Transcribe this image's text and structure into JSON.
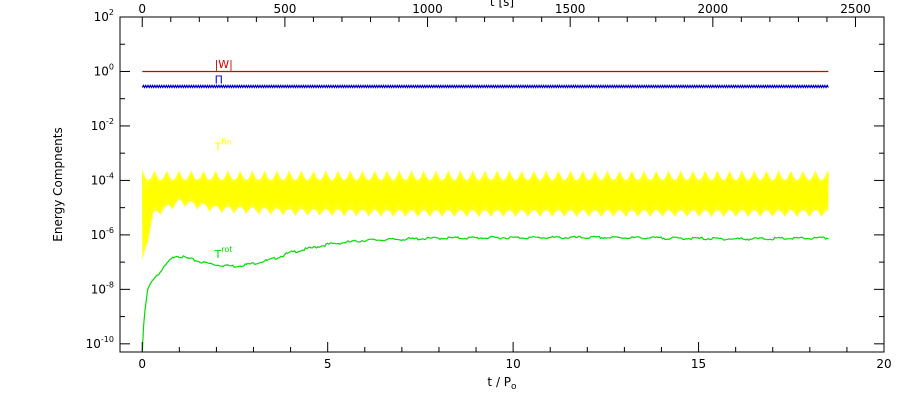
{
  "chart_data": {
    "type": "line",
    "title": "",
    "xlabel": "t / P",
    "xlabel_sub": "o",
    "x2label": "t [s]",
    "ylabel": "Energy Compnents",
    "xlim": [
      -0.6,
      20
    ],
    "x2lim": [
      -78,
      2600
    ],
    "ylim_log10": [
      -10.3,
      2
    ],
    "yscale": "log",
    "grid": false,
    "legend": "none",
    "x_ticks": [
      "0",
      "5",
      "10",
      "15",
      "20"
    ],
    "x_tick_values": [
      0,
      5,
      10,
      15,
      20
    ],
    "x2_ticks": [
      "0",
      "500",
      "1000",
      "1500",
      "2000",
      "2500"
    ],
    "x2_tick_values": [
      0,
      500,
      1000,
      1500,
      2000,
      2500
    ],
    "y_tick_base": "10",
    "y_tick_exps": [
      "2",
      "0",
      "-2",
      "-4",
      "-6",
      "-8",
      "-10"
    ],
    "y_tick_values_log10": [
      2,
      0,
      -2,
      -4,
      -6,
      -8,
      -10
    ],
    "series": [
      {
        "name": "|W|",
        "color": "#d40000",
        "x": [
          0,
          18.5
        ],
        "y_log10": [
          0.0,
          0.0
        ]
      },
      {
        "name": "Π",
        "color": "#0000cc",
        "x": [
          0,
          18.5
        ],
        "y_log10": [
          -0.55,
          -0.55
        ],
        "ripple_log10": 0.04
      },
      {
        "name": "T",
        "name_sup": "flo",
        "color": "#ffff00",
        "x": [
          0,
          18.5
        ],
        "upper_log10": -3.63,
        "lower_envelope": {
          "x": [
            0,
            0.3,
            1.0,
            2.0,
            4.0,
            7.0,
            10.0,
            15.0,
            18.5
          ],
          "y_log10": [
            -7.2,
            -5.4,
            -4.95,
            -5.2,
            -5.3,
            -5.35,
            -5.35,
            -5.35,
            -5.35
          ]
        },
        "oscillation_period": 0.33
      },
      {
        "name": "T",
        "name_sup": "rot",
        "color": "#00dd00",
        "x": [
          0,
          0.05,
          0.15,
          0.3,
          0.5,
          0.7,
          0.9,
          1.2,
          1.6,
          2.0,
          2.5,
          3.0,
          3.5,
          4.0,
          5.0,
          6.0,
          8.0,
          10.0,
          13.0,
          16.0,
          18.5
        ],
        "y_log10": [
          -10.3,
          -9.0,
          -8.0,
          -7.6,
          -7.35,
          -7.0,
          -6.75,
          -6.85,
          -7.0,
          -7.1,
          -7.15,
          -7.05,
          -6.9,
          -6.65,
          -6.35,
          -6.2,
          -6.12,
          -6.1,
          -6.1,
          -6.15,
          -6.12
        ]
      }
    ],
    "annotations": [
      {
        "text": "|W|",
        "sup": "",
        "x": 1.95,
        "y_log10": 0.12,
        "color": "#d40000"
      },
      {
        "text": "Π",
        "sup": "",
        "x": 1.95,
        "y_log10": -0.45,
        "color": "#0000cc"
      },
      {
        "text": "T",
        "sup": "flo",
        "x": 1.95,
        "y_log10": -2.9,
        "color": "#ffff00"
      },
      {
        "text": "T",
        "sup": "rot",
        "x": 1.95,
        "y_log10": -6.85,
        "color": "#00dd00"
      }
    ]
  }
}
